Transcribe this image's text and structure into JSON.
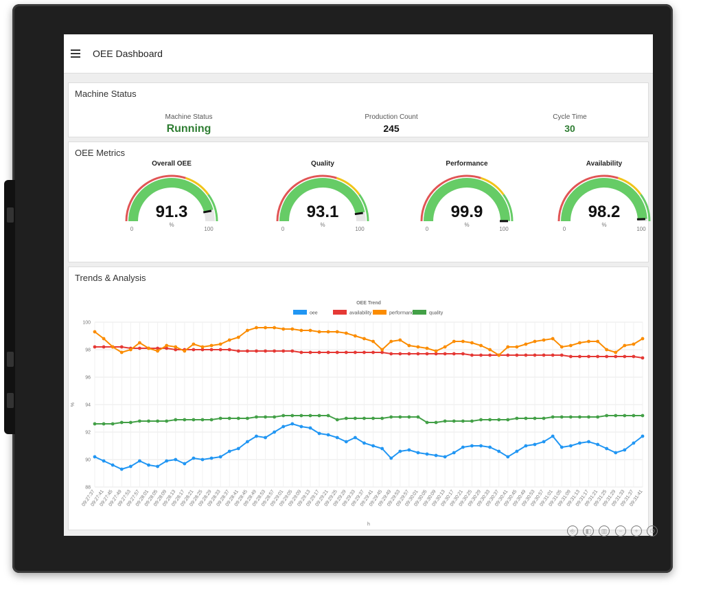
{
  "app": {
    "title": "OEE Dashboard"
  },
  "machine_status": {
    "section_title": "Machine Status",
    "status_label": "Machine Status",
    "status_value": "Running",
    "count_label": "Production Count",
    "count_value": "245",
    "cycle_label": "Cycle Time",
    "cycle_value": "30",
    "status_color": "#2e7d32"
  },
  "oee_metrics": {
    "section_title": "OEE Metrics",
    "gauges": [
      {
        "title": "Overall OEE",
        "value": "91.3",
        "unit": "%",
        "min": "0",
        "max": "100",
        "fraction": 0.913
      },
      {
        "title": "Quality",
        "value": "93.1",
        "unit": "%",
        "min": "0",
        "max": "100",
        "fraction": 0.931
      },
      {
        "title": "Performance",
        "value": "99.9",
        "unit": "%",
        "min": "0",
        "max": "100",
        "fraction": 0.999
      },
      {
        "title": "Availability",
        "value": "98.2",
        "unit": "%",
        "min": "0",
        "max": "100",
        "fraction": 0.982
      }
    ],
    "colors": {
      "green": "#66cc66",
      "yellow": "#f0c419",
      "red": "#e05555"
    }
  },
  "trends": {
    "section_title": "Trends & Analysis"
  },
  "chart_data": {
    "type": "line",
    "title": "OEE Trend",
    "xlabel": "h",
    "ylabel": "%",
    "ylim": [
      88,
      100
    ],
    "yticks": [
      "88",
      "90",
      "92",
      "94",
      "96",
      "98",
      "100"
    ],
    "legend_position": "top",
    "x": [
      "09:27:37",
      "09:27:41",
      "09:27:45",
      "09:27:49",
      "09:27:53",
      "09:27:57",
      "09:28:01",
      "09:28:05",
      "09:28:09",
      "09:28:13",
      "09:28:17",
      "09:28:21",
      "09:28:25",
      "09:28:29",
      "09:28:33",
      "09:28:37",
      "09:28:41",
      "09:28:45",
      "09:28:49",
      "09:28:53",
      "09:28:57",
      "09:29:01",
      "09:29:05",
      "09:29:09",
      "09:29:13",
      "09:29:17",
      "09:29:21",
      "09:29:25",
      "09:29:29",
      "09:29:33",
      "09:29:37",
      "09:29:41",
      "09:29:45",
      "09:29:49",
      "09:29:53",
      "09:29:57",
      "09:30:01",
      "09:30:05",
      "09:30:09",
      "09:30:13",
      "09:30:17",
      "09:30:21",
      "09:30:25",
      "09:30:29",
      "09:30:33",
      "09:30:37",
      "09:30:41",
      "09:30:45",
      "09:30:49",
      "09:30:53",
      "09:30:57",
      "09:31:01",
      "09:31:05",
      "09:31:09",
      "09:31:13",
      "09:31:17",
      "09:31:21",
      "09:31:25",
      "09:31:29",
      "09:31:33",
      "09:31:37",
      "09:31:41"
    ],
    "series": [
      {
        "name": "oee",
        "color": "#2196f3",
        "values": [
          90.2,
          89.9,
          89.6,
          89.3,
          89.5,
          89.9,
          89.6,
          89.5,
          89.9,
          90.0,
          89.7,
          90.1,
          90.0,
          90.1,
          90.2,
          90.6,
          90.8,
          91.3,
          91.7,
          91.6,
          92.0,
          92.4,
          92.6,
          92.4,
          92.3,
          91.9,
          91.8,
          91.6,
          91.3,
          91.6,
          91.2,
          91.0,
          90.8,
          90.1,
          90.6,
          90.7,
          90.5,
          90.4,
          90.3,
          90.2,
          90.5,
          90.9,
          91.0,
          91.0,
          90.9,
          90.6,
          90.2,
          90.6,
          91.0,
          91.1,
          91.3,
          91.7,
          90.9,
          91.0,
          91.2,
          91.3,
          91.1,
          90.8,
          90.5,
          90.7,
          91.2,
          91.7
        ]
      },
      {
        "name": "availability",
        "color": "#e53935",
        "values": [
          98.2,
          98.2,
          98.2,
          98.2,
          98.1,
          98.1,
          98.1,
          98.1,
          98.1,
          98.0,
          98.0,
          98.0,
          98.0,
          98.0,
          98.0,
          98.0,
          97.9,
          97.9,
          97.9,
          97.9,
          97.9,
          97.9,
          97.9,
          97.8,
          97.8,
          97.8,
          97.8,
          97.8,
          97.8,
          97.8,
          97.8,
          97.8,
          97.8,
          97.7,
          97.7,
          97.7,
          97.7,
          97.7,
          97.7,
          97.7,
          97.7,
          97.7,
          97.6,
          97.6,
          97.6,
          97.6,
          97.6,
          97.6,
          97.6,
          97.6,
          97.6,
          97.6,
          97.6,
          97.5,
          97.5,
          97.5,
          97.5,
          97.5,
          97.5,
          97.5,
          97.5,
          97.4
        ]
      },
      {
        "name": "performance",
        "color": "#fb8c00",
        "values": [
          99.3,
          98.8,
          98.2,
          97.8,
          98.0,
          98.5,
          98.1,
          97.9,
          98.3,
          98.2,
          97.9,
          98.4,
          98.2,
          98.3,
          98.4,
          98.7,
          98.9,
          99.4,
          99.6,
          99.6,
          99.6,
          99.5,
          99.5,
          99.4,
          99.4,
          99.3,
          99.3,
          99.3,
          99.2,
          99.0,
          98.8,
          98.6,
          98.0,
          98.6,
          98.7,
          98.3,
          98.2,
          98.1,
          97.9,
          98.2,
          98.6,
          98.6,
          98.5,
          98.3,
          98.0,
          97.6,
          98.2,
          98.2,
          98.4,
          98.6,
          98.7,
          98.8,
          98.2,
          98.3,
          98.5,
          98.6,
          98.6,
          98.0,
          97.8,
          98.3,
          98.4,
          98.8
        ]
      },
      {
        "name": "quality",
        "color": "#43a047",
        "values": [
          92.6,
          92.6,
          92.6,
          92.7,
          92.7,
          92.8,
          92.8,
          92.8,
          92.8,
          92.9,
          92.9,
          92.9,
          92.9,
          92.9,
          93.0,
          93.0,
          93.0,
          93.0,
          93.1,
          93.1,
          93.1,
          93.2,
          93.2,
          93.2,
          93.2,
          93.2,
          93.2,
          92.9,
          93.0,
          93.0,
          93.0,
          93.0,
          93.0,
          93.1,
          93.1,
          93.1,
          93.1,
          92.7,
          92.7,
          92.8,
          92.8,
          92.8,
          92.8,
          92.9,
          92.9,
          92.9,
          92.9,
          93.0,
          93.0,
          93.0,
          93.0,
          93.1,
          93.1,
          93.1,
          93.1,
          93.1,
          93.1,
          93.2,
          93.2,
          93.2,
          93.2,
          93.2
        ]
      }
    ]
  }
}
